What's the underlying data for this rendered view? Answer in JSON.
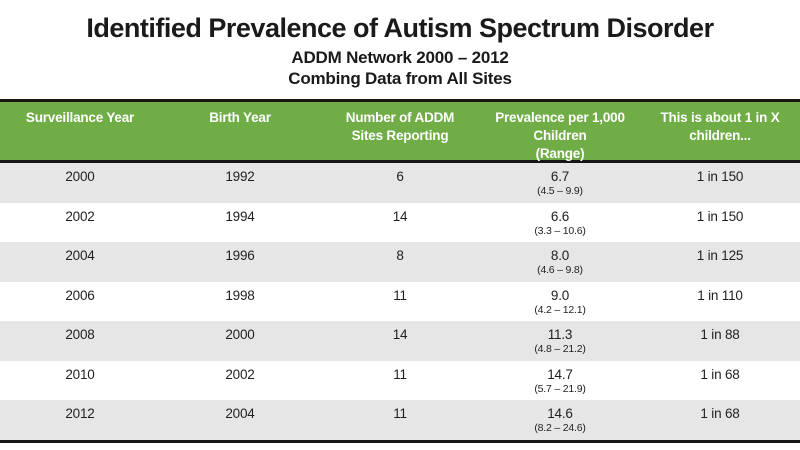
{
  "slide": {
    "title": "Identified Prevalence of Autism Spectrum Disorder",
    "subtitle1": "ADDM Network 2000 – 2012",
    "subtitle2": "Combing Data from All Sites"
  },
  "colors": {
    "header_green": "#70AD47",
    "row_gray": "#E7E6E6",
    "row_white": "#FFFFFF",
    "border_black": "#161616",
    "header_text": "#FFFFFF",
    "body_text": "#1F1F1F"
  },
  "table": {
    "headers": {
      "surveillance_year": "Surveillance Year",
      "birth_year": "Birth Year",
      "sites": "Number of ADDM\nSites Reporting",
      "prevalence": "Prevalence per 1,000\nChildren\n(Range)",
      "about": "This is about 1 in X\nchildren..."
    },
    "rows": [
      {
        "surveillance_year": "2000",
        "birth_year": "1992",
        "sites": "6",
        "prevalence": "6.7",
        "range": "(4.5 – 9.9)",
        "about": "1 in 150"
      },
      {
        "surveillance_year": "2002",
        "birth_year": "1994",
        "sites": "14",
        "prevalence": "6.6",
        "range": "(3.3 – 10.6)",
        "about": "1 in 150"
      },
      {
        "surveillance_year": "2004",
        "birth_year": "1996",
        "sites": "8",
        "prevalence": "8.0",
        "range": "(4.6 – 9.8)",
        "about": "1 in 125"
      },
      {
        "surveillance_year": "2006",
        "birth_year": "1998",
        "sites": "11",
        "prevalence": "9.0",
        "range": "(4.2 – 12.1)",
        "about": "1 in 110"
      },
      {
        "surveillance_year": "2008",
        "birth_year": "2000",
        "sites": "14",
        "prevalence": "11.3",
        "range": "(4.8 – 21.2)",
        "about": "1 in 88"
      },
      {
        "surveillance_year": "2010",
        "birth_year": "2002",
        "sites": "11",
        "prevalence": "14.7",
        "range": "(5.7 – 21.9)",
        "about": "1 in 68"
      },
      {
        "surveillance_year": "2012",
        "birth_year": "2004",
        "sites": "11",
        "prevalence": "14.6",
        "range": "(8.2 – 24.6)",
        "about": "1 in 68"
      }
    ]
  },
  "chart_data": {
    "type": "table",
    "title": "Identified Prevalence of Autism Spectrum Disorder",
    "subtitle": "ADDM Network 2000 – 2012 — Combing Data from All Sites",
    "columns": [
      "Surveillance Year",
      "Birth Year",
      "Number of ADDM Sites Reporting",
      "Prevalence per 1,000 Children (Range)",
      "This is about 1 in X children..."
    ],
    "rows": [
      [
        "2000",
        "1992",
        "6",
        "6.7 (4.5 – 9.9)",
        "1 in 150"
      ],
      [
        "2002",
        "1994",
        "14",
        "6.6 (3.3 – 10.6)",
        "1 in 150"
      ],
      [
        "2004",
        "1996",
        "8",
        "8.0 (4.6 – 9.8)",
        "1 in 125"
      ],
      [
        "2006",
        "1998",
        "11",
        "9.0 (4.2 – 12.1)",
        "1 in 110"
      ],
      [
        "2008",
        "2000",
        "14",
        "11.3 (4.8 – 21.2)",
        "1 in 88"
      ],
      [
        "2010",
        "2002",
        "11",
        "14.7 (5.7 – 21.9)",
        "1 in 68"
      ],
      [
        "2012",
        "2004",
        "11",
        "14.6 (8.2 – 24.6)",
        "1 in 68"
      ]
    ],
    "series": [
      {
        "name": "Prevalence per 1,000 children",
        "x": [
          2000,
          2002,
          2004,
          2006,
          2008,
          2010,
          2012
        ],
        "values": [
          6.7,
          6.6,
          8.0,
          9.0,
          11.3,
          14.7,
          14.6
        ]
      },
      {
        "name": "Range low",
        "x": [
          2000,
          2002,
          2004,
          2006,
          2008,
          2010,
          2012
        ],
        "values": [
          4.5,
          3.3,
          4.6,
          4.2,
          4.8,
          5.7,
          8.2
        ]
      },
      {
        "name": "Range high",
        "x": [
          2000,
          2002,
          2004,
          2006,
          2008,
          2010,
          2012
        ],
        "values": [
          9.9,
          10.6,
          9.8,
          12.1,
          21.2,
          21.9,
          24.6
        ]
      },
      {
        "name": "Number of ADDM sites reporting",
        "x": [
          2000,
          2002,
          2004,
          2006,
          2008,
          2010,
          2012
        ],
        "values": [
          6,
          14,
          8,
          11,
          14,
          11,
          11
        ]
      },
      {
        "name": "Birth year",
        "x": [
          2000,
          2002,
          2004,
          2006,
          2008,
          2010,
          2012
        ],
        "values": [
          1992,
          1994,
          1996,
          1998,
          2000,
          2002,
          2004
        ]
      },
      {
        "name": "About 1 in X children",
        "x": [
          2000,
          2002,
          2004,
          2006,
          2008,
          2010,
          2012
        ],
        "values": [
          150,
          150,
          125,
          110,
          88,
          68,
          68
        ]
      }
    ]
  }
}
